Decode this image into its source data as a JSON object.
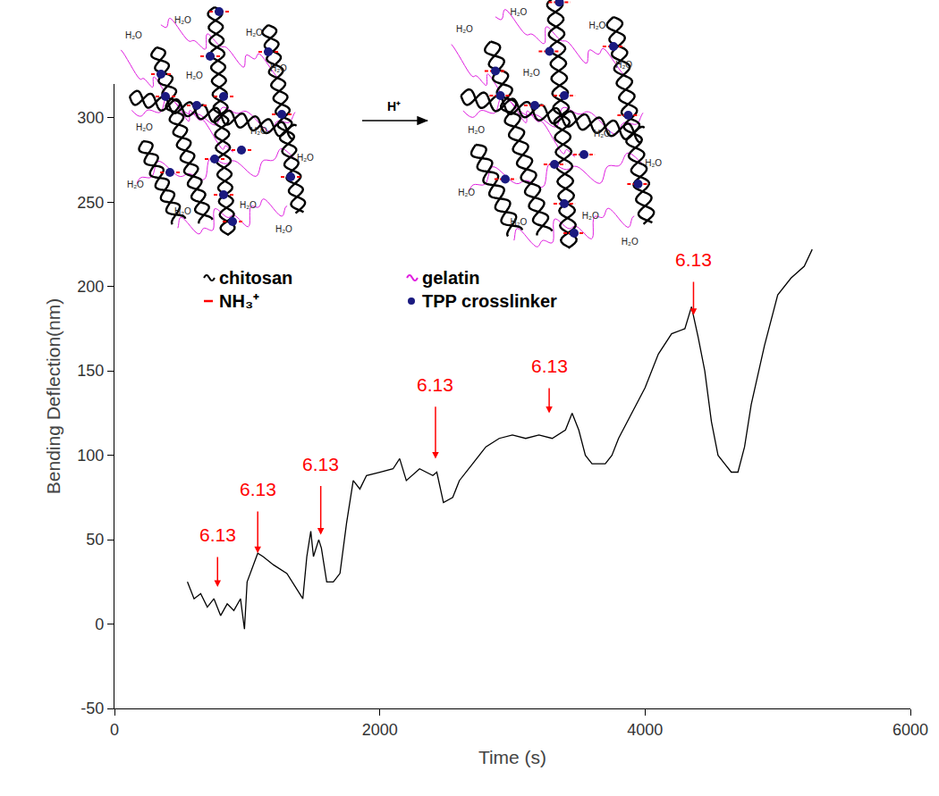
{
  "chart_data": {
    "type": "line",
    "x_label": "Time (s)",
    "y_label": "Bending Deflection(nm)",
    "xlim": [
      0,
      6000
    ],
    "xticks": [
      0,
      2000,
      4000,
      6000
    ],
    "ylim": [
      -50,
      320
    ],
    "yticks": [
      -50,
      0,
      50,
      100,
      150,
      200,
      250,
      300
    ],
    "color": "#000000",
    "x": [
      550,
      600,
      650,
      700,
      750,
      800,
      850,
      900,
      950,
      980,
      1000,
      1050,
      1080,
      1120,
      1200,
      1300,
      1380,
      1420,
      1450,
      1480,
      1500,
      1540,
      1560,
      1600,
      1650,
      1700,
      1750,
      1800,
      1850,
      1900,
      2000,
      2100,
      2150,
      2200,
      2300,
      2400,
      2430,
      2480,
      2550,
      2600,
      2700,
      2800,
      2900,
      3000,
      3100,
      3200,
      3300,
      3400,
      3450,
      3500,
      3550,
      3600,
      3700,
      3750,
      3800,
      3900,
      4000,
      4100,
      4200,
      4300,
      4350,
      4400,
      4450,
      4500,
      4550,
      4600,
      4650,
      4700,
      4750,
      4800,
      4900,
      5000,
      5100,
      5200,
      5260
    ],
    "values": [
      25,
      15,
      18,
      10,
      15,
      5,
      12,
      8,
      15,
      -3,
      25,
      35,
      42,
      40,
      35,
      30,
      20,
      15,
      40,
      55,
      40,
      50,
      45,
      25,
      25,
      30,
      60,
      85,
      80,
      88,
      90,
      92,
      98,
      85,
      92,
      88,
      90,
      72,
      75,
      85,
      95,
      105,
      110,
      112,
      110,
      112,
      110,
      115,
      125,
      115,
      100,
      95,
      95,
      100,
      110,
      125,
      140,
      160,
      172,
      175,
      188,
      170,
      150,
      120,
      100,
      95,
      90,
      90,
      105,
      130,
      165,
      195,
      205,
      212,
      222
    ],
    "annotations": [
      {
        "text": "6.13",
        "x": 777,
        "y": 22,
        "text_y": 53,
        "color": "#ff0000"
      },
      {
        "text": "6.13",
        "x": 1080,
        "y": 42,
        "text_y": 80,
        "color": "#ff0000"
      },
      {
        "text": "6.13",
        "x": 1555,
        "y": 53,
        "text_y": 95,
        "color": "#ff0000"
      },
      {
        "text": "6.13",
        "x": 2420,
        "y": 98,
        "text_y": 142,
        "color": "#ff0000"
      },
      {
        "text": "6.13",
        "x": 3277,
        "y": 125,
        "text_y": 153,
        "color": "#ff0000"
      },
      {
        "text": "6.13",
        "x": 4365,
        "y": 183,
        "text_y": 216,
        "color": "#ff0000"
      }
    ],
    "schematic": {
      "arrow_label": "H⁺",
      "water_label": "H₂O",
      "legend": [
        {
          "label": "chitosan",
          "color": "#000000",
          "marker": "wave"
        },
        {
          "label": "NH₃⁺",
          "color": "#ff0000",
          "marker": "dash"
        },
        {
          "label": "gelatin",
          "color": "#e020e0",
          "marker": "wave"
        },
        {
          "label": "TPP crosslinker",
          "color": "#1a1a80",
          "marker": "dot"
        }
      ]
    }
  }
}
